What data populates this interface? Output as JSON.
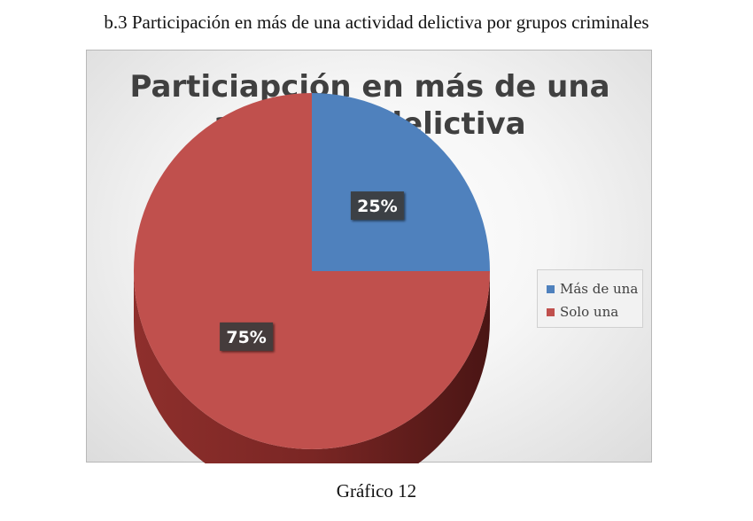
{
  "heading": "b.3 Participación en más de una actividad delictiva por grupos criminales",
  "caption": "Gráfico 12",
  "chart_data": {
    "type": "pie",
    "title_lines": [
      "Particiapción en más de una",
      "actividad delictiva"
    ],
    "categories": [
      "Más de una",
      "Solo una"
    ],
    "values": [
      25,
      75
    ],
    "labels": [
      "25%",
      "75%"
    ],
    "colors": [
      "#4f81bd",
      "#c0504d"
    ],
    "side_colors": [
      "#2f4f7a",
      "#7a2624"
    ],
    "legend_position": "right",
    "style": "3d"
  }
}
